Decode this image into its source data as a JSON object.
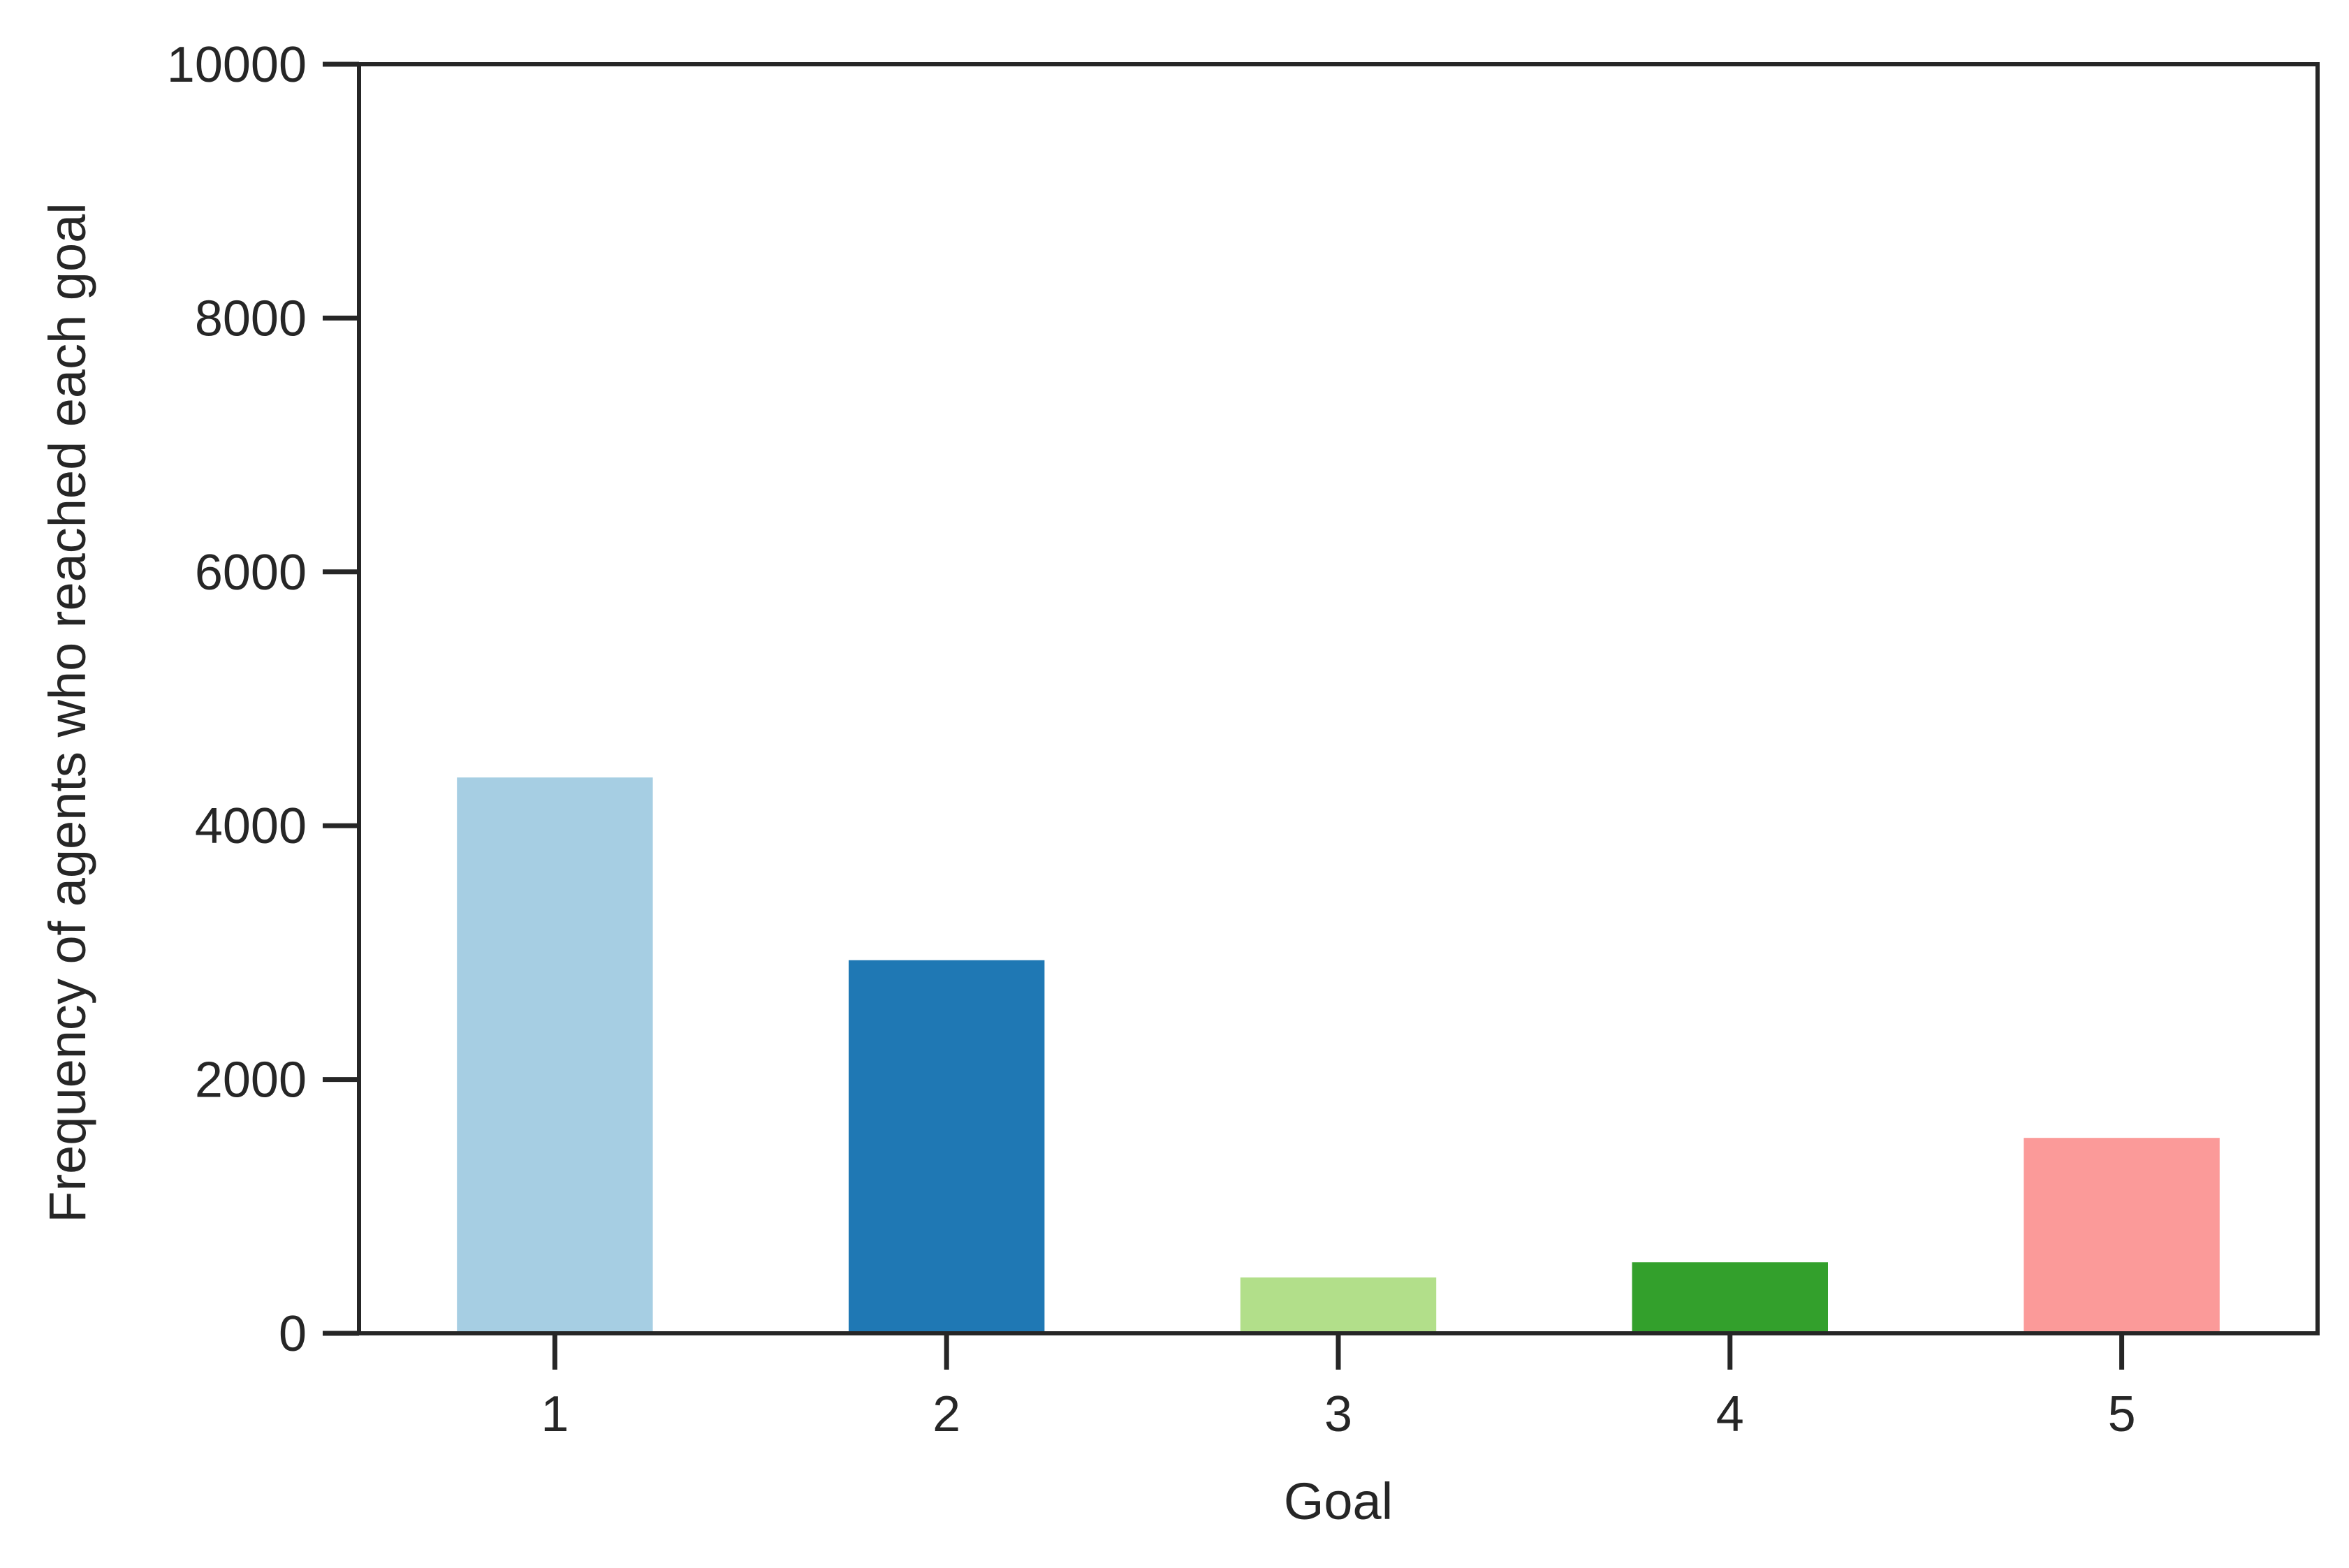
{
  "chart_data": {
    "type": "bar",
    "categories": [
      "1",
      "2",
      "3",
      "4",
      "5"
    ],
    "values": [
      4380,
      2940,
      440,
      560,
      1540
    ],
    "colors": [
      "#a6cee3",
      "#1f78b4",
      "#b2df8a",
      "#33a02c",
      "#fb9a99"
    ],
    "xlabel": "Goal",
    "ylabel": "Frequency of agents who reached each goal",
    "ylim": [
      0,
      10000
    ],
    "yticks": [
      "0",
      "2000",
      "4000",
      "6000",
      "8000",
      "10000"
    ],
    "grid": false,
    "legend": "none"
  }
}
